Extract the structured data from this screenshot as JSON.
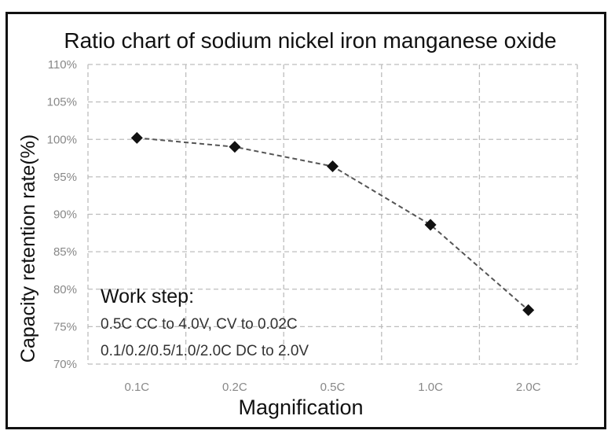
{
  "chart_data": {
    "type": "line",
    "title": "Ratio chart of sodium nickel iron manganese oxide",
    "xlabel": "Magnification",
    "ylabel": "Capacity retention rate(%)",
    "categories": [
      "0.1C",
      "0.2C",
      "0.5C",
      "1.0C",
      "2.0C"
    ],
    "series": [
      {
        "values": [
          100.2,
          99.0,
          96.4,
          88.6,
          77.2
        ]
      }
    ],
    "ylim": [
      70,
      110
    ],
    "yticks": [
      "70%",
      "75%",
      "80%",
      "85%",
      "90%",
      "95%",
      "100%",
      "105%",
      "110%"
    ],
    "grid": true,
    "line_style": "dashed",
    "marker": "diamond",
    "colors": {
      "line": "#555555",
      "marker": "#111111",
      "grid": "#bdbdbd"
    },
    "annotation": {
      "heading": "Work step:",
      "lines": [
        "0.5C CC to 4.0V, CV to 0.02C",
        "0.1/0.2/0.5/1.0/2.0C DC to 2.0V"
      ]
    }
  }
}
